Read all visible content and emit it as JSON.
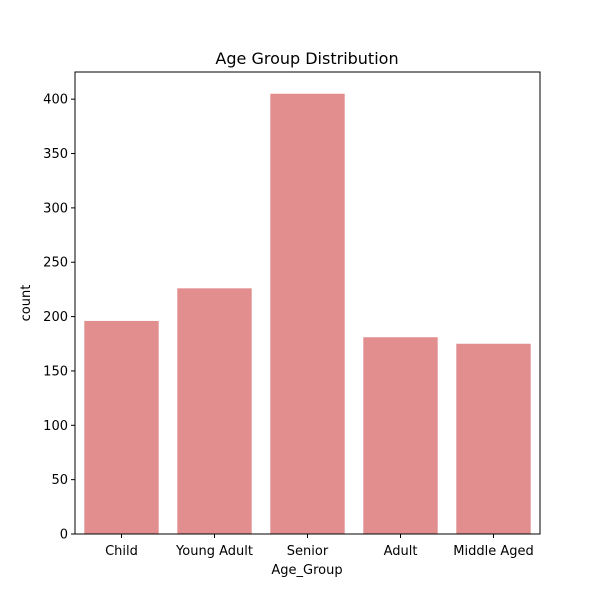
{
  "chart_data": {
    "type": "bar",
    "title": "Age Group Distribution",
    "xlabel": "Age_Group",
    "ylabel": "count",
    "categories": [
      "Child",
      "Young Adult",
      "Senior",
      "Adult",
      "Middle Aged"
    ],
    "values": [
      196,
      226,
      405,
      181,
      175
    ],
    "ylim": [
      0,
      425
    ],
    "yticks": [
      0,
      50,
      100,
      150,
      200,
      250,
      300,
      350,
      400
    ],
    "grid": false,
    "bar_color": "#e28e8f"
  }
}
